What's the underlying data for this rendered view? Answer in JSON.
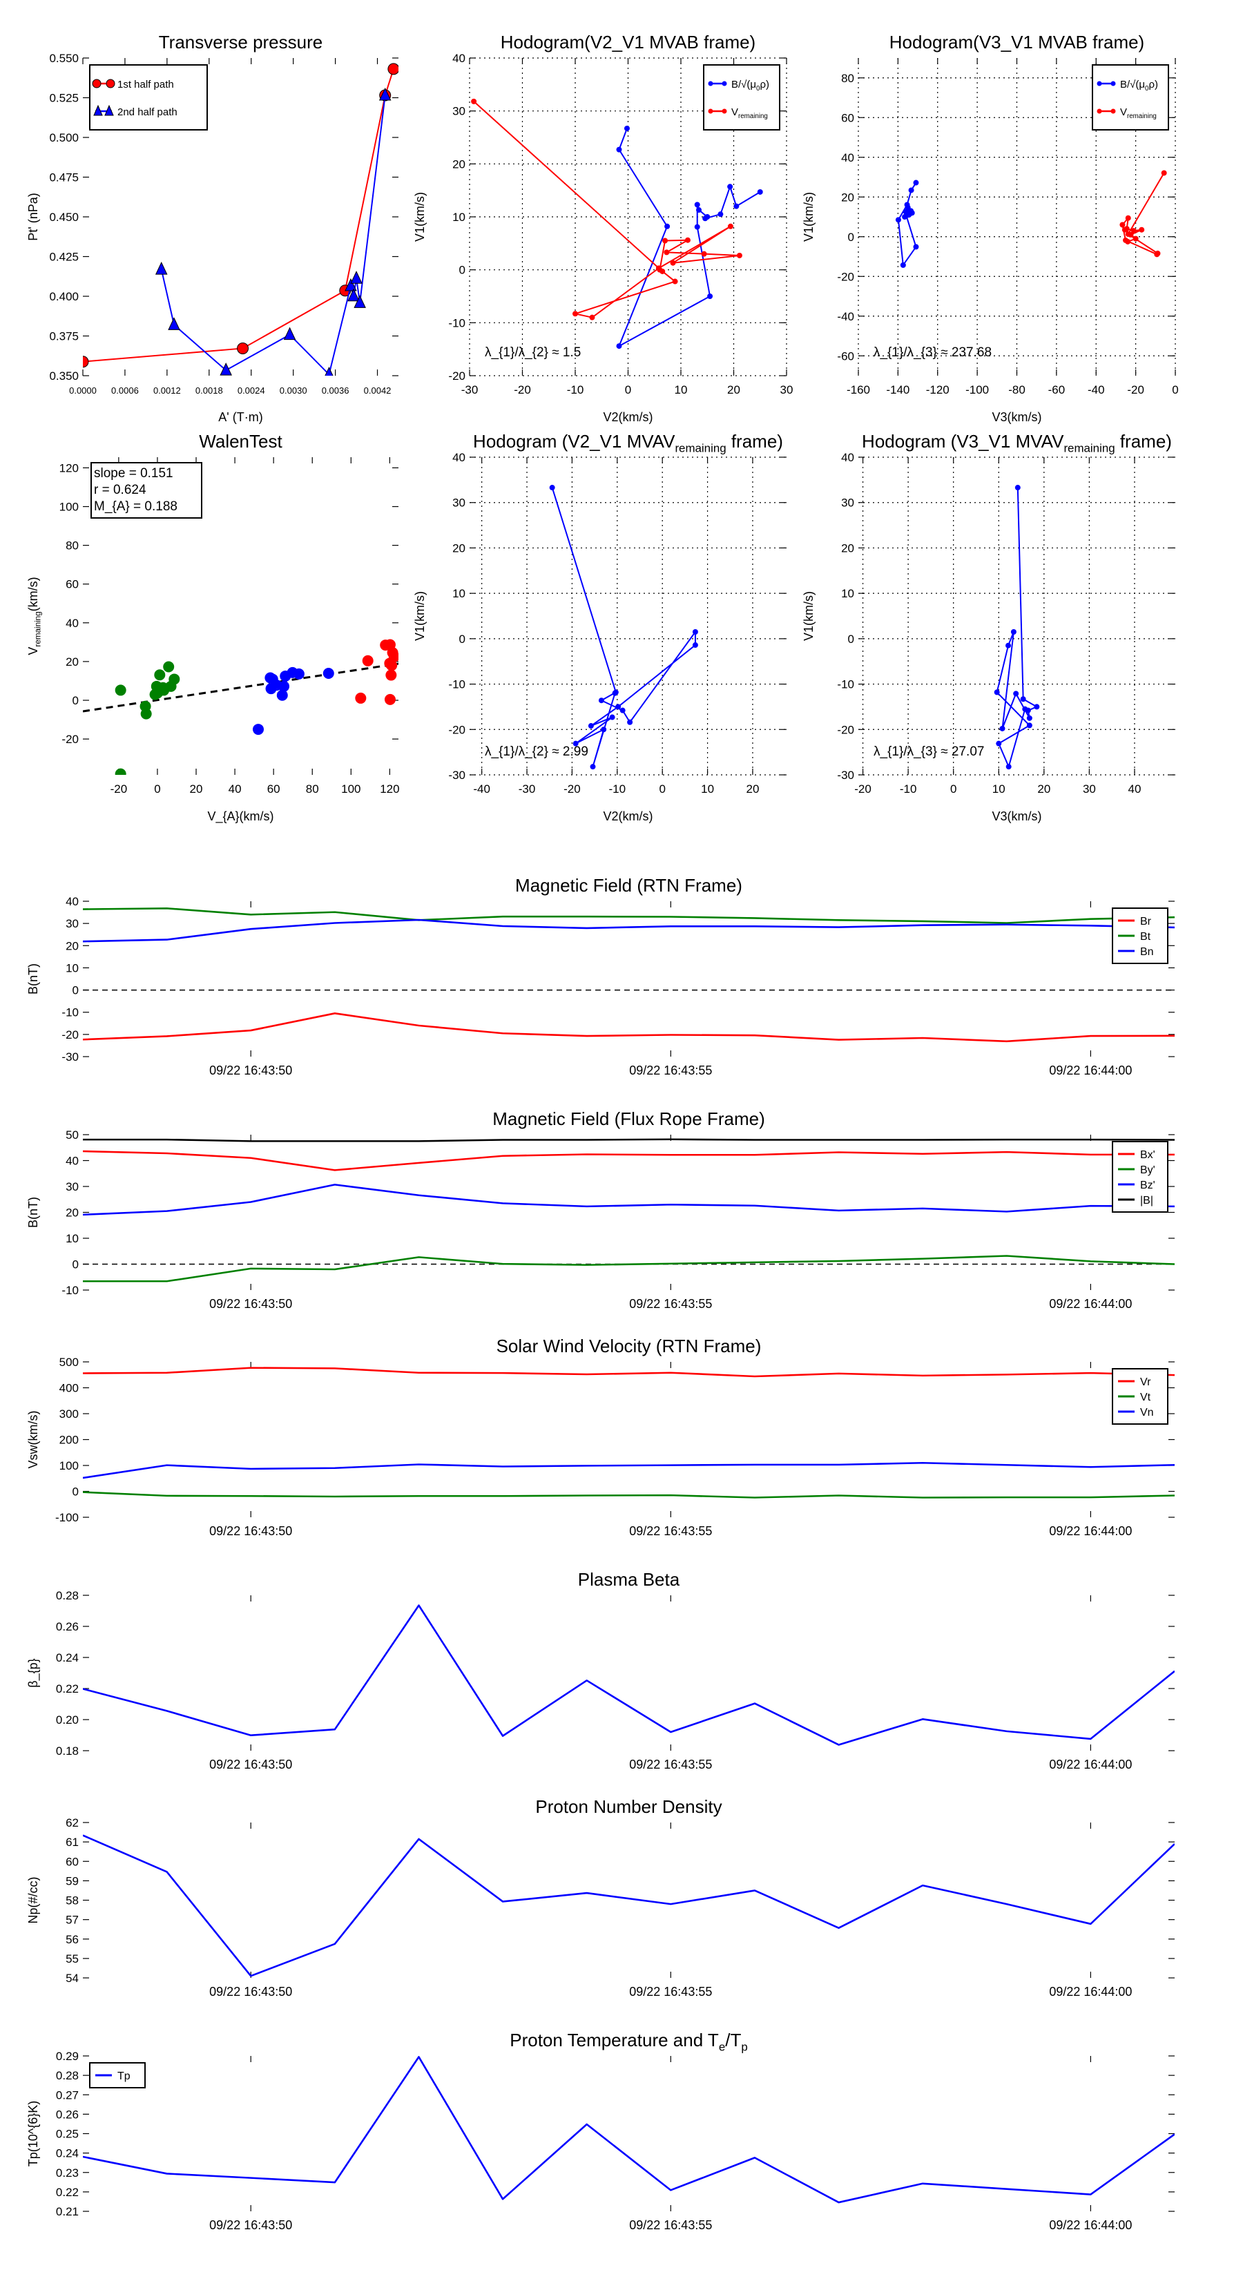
{
  "chart_data": [
    {
      "id": "transverse-pressure",
      "type": "line",
      "title": "Transverse pressure",
      "xlabel": "A' (T·m)",
      "ylabel": "Pt' (nPa)",
      "xlim": [
        0,
        0.0045
      ],
      "ylim": [
        0.35,
        0.55
      ],
      "xticks": [
        0,
        0.0006,
        0.0012,
        0.0018,
        0.0024,
        0.003,
        0.0036,
        0.0042
      ],
      "xticklabels": [
        "0.0000",
        "0.0006",
        "0.0012",
        "0.0018",
        "0.0024",
        "0.0030",
        "0.0036",
        "0.0042"
      ],
      "yticks": [
        0.35,
        0.375,
        0.4,
        0.425,
        0.45,
        0.475,
        0.5,
        0.525,
        0.55
      ],
      "yticklabels": [
        "0.350",
        "0.375",
        "0.400",
        "0.425",
        "0.450",
        "0.475",
        "0.500",
        "0.525",
        "0.550"
      ],
      "grid": false,
      "legend": "upper-left",
      "series": [
        {
          "name": "1st half path",
          "color": "#ff0000",
          "marker": "circle",
          "line": true,
          "x": [
            0,
            0.00228,
            0.00374,
            0.00431,
            0.00443
          ],
          "y": [
            0.3588,
            0.3672,
            0.4036,
            0.5265,
            0.5431
          ]
        },
        {
          "name": "2nd half path",
          "color": "#0000ff",
          "marker": "triangle",
          "line": true,
          "x": [
            0.00112,
            0.0013,
            0.00204,
            0.00295,
            0.00351,
            0.00382,
            0.00386,
            0.0039,
            0.00395,
            0.00431
          ],
          "y": [
            0.4169,
            0.382,
            0.3534,
            0.3758,
            0.3508,
            0.4065,
            0.4001,
            0.4112,
            0.3959,
            0.5265
          ]
        }
      ]
    },
    {
      "id": "hodogram-v2v1-mvab",
      "type": "line",
      "title": "Hodogram(V2_V1 MVAB frame)",
      "xlabel": "V2(km/s)",
      "ylabel": "V1(km/s)",
      "xlim": [
        -30,
        30
      ],
      "ylim": [
        -20,
        40
      ],
      "xticks": [
        -30,
        -20,
        -10,
        0,
        10,
        20,
        30
      ],
      "yticks": [
        -20,
        -10,
        0,
        10,
        20,
        30,
        40
      ],
      "grid": true,
      "legend": "upper-right",
      "annotation": "λ_{1}/λ_{2} ≈ 1.5",
      "series": [
        {
          "name": "B/√(μ_{0}ρ)",
          "color": "#0000ff",
          "marker": "dot",
          "line": true,
          "x": [
            -0.2,
            -1.7,
            7.4,
            -1.7,
            15.5,
            13.1,
            13.1,
            13.4,
            15.0,
            14.6,
            17.5,
            19.3,
            20.5,
            25.0
          ],
          "y": [
            26.7,
            22.7,
            8.2,
            -14.4,
            -5.0,
            8.1,
            12.3,
            11.3,
            10.0,
            9.7,
            10.5,
            15.7,
            12.0,
            14.7
          ]
        },
        {
          "name": "V_{remaining}",
          "color": "#ff0000",
          "marker": "dot",
          "line": true,
          "x": [
            -29.2,
            6.5,
            8.9,
            -10.0,
            -6.8,
            5.8,
            19.4,
            8.5,
            21.1,
            14.4,
            7.3,
            11.3,
            7.0,
            6.0
          ],
          "y": [
            31.8,
            -0.3,
            -2.2,
            -8.3,
            -9.0,
            0.3,
            8.2,
            1.3,
            2.7,
            3.0,
            3.3,
            5.6,
            5.5,
            0.0
          ]
        }
      ]
    },
    {
      "id": "hodogram-v3v1-mvab",
      "type": "line",
      "title": "Hodogram(V3_V1 MVAB frame)",
      "xlabel": "V3(km/s)",
      "ylabel": "V1(km/s)",
      "xlim": [
        -160,
        0
      ],
      "ylim": [
        -70,
        90
      ],
      "xticks": [
        -160,
        -140,
        -120,
        -100,
        -80,
        -60,
        -40,
        -20,
        0
      ],
      "yticks": [
        -60,
        -40,
        -20,
        0,
        20,
        40,
        60,
        80
      ],
      "grid": true,
      "legend": "upper-right",
      "annotation": "λ_{1}/λ_{3} ≈ 237.68",
      "series": [
        {
          "name": "B/√(μ_{0}ρ)",
          "color": "#0000ff",
          "marker": "dot",
          "line": true,
          "x": [
            -130.9,
            -133.3,
            -135.4,
            -139.8,
            -137.4,
            -130.9,
            -135.8,
            -132.9,
            -136.6,
            -135.0,
            -134.0,
            -133.5,
            -136.0,
            -134.5
          ],
          "y": [
            27.2,
            23.4,
            16.1,
            8.5,
            -14.3,
            -5.1,
            10.6,
            12.0,
            10.0,
            14.7,
            11.5,
            13.0,
            12.5,
            11.0
          ]
        },
        {
          "name": "V_{remaining}",
          "color": "#ff0000",
          "marker": "dot",
          "line": true,
          "x": [
            -5.7,
            -23.8,
            -8.9,
            -9.3,
            -25.1,
            -26.7,
            -23.8,
            -24.5,
            -21.0,
            -17.0,
            -22.5,
            -25.5,
            -20.0,
            -24.0
          ],
          "y": [
            32.1,
            1.3,
            -8.4,
            -8.9,
            -1.8,
            6.0,
            9.4,
            4.0,
            3.0,
            3.5,
            1.0,
            3.5,
            -1.0,
            -2.5
          ]
        }
      ]
    },
    {
      "id": "walen-test",
      "type": "scatter",
      "title": "WalenTest",
      "xlabel": "V_{A}(km/s)",
      "ylabel": "V_{remaining}(km/s)",
      "xlim": [
        -38.5,
        124.5
      ],
      "ylim": [
        -38.5,
        125.5
      ],
      "xticks": [
        -20,
        0,
        20,
        40,
        60,
        80,
        100,
        120
      ],
      "yticks": [
        -20,
        0,
        20,
        40,
        60,
        80,
        100,
        120
      ],
      "grid": false,
      "stats": [
        "slope = 0.151",
        "r = 0.624",
        "M_{A} = 0.188"
      ],
      "fit": {
        "slope": 0.151,
        "intercept": 0.1
      },
      "series": [
        {
          "name": "green",
          "color": "#008000",
          "marker": "big",
          "line": false,
          "x": [
            -19,
            -19,
            -6.2,
            -5.8,
            -0.4,
            -1.2,
            1.2,
            2.9,
            3.3,
            5.8,
            7.0,
            8.7,
            0.0
          ],
          "y": [
            5.2,
            -38,
            -3.1,
            -7.0,
            7.2,
            3.0,
            13.1,
            6.5,
            5.2,
            17.3,
            7.2,
            10.9,
            3.7
          ]
        },
        {
          "name": "blue",
          "color": "#0000ff",
          "marker": "big",
          "line": false,
          "x": [
            58.3,
            58.7,
            61.6,
            64.5,
            65.3,
            66.1,
            69.8,
            73.1,
            88.4,
            52.1,
            59.5
          ],
          "y": [
            11.6,
            6.0,
            7.8,
            2.6,
            7.2,
            12.5,
            14.3,
            13.6,
            13.9,
            -15.0,
            10.9
          ]
        },
        {
          "name": "red",
          "color": "#ff0000",
          "marker": "big",
          "line": false,
          "x": [
            105,
            108.7,
            117.8,
            120.2,
            120.2,
            120.7,
            121.0,
            121.5,
            122.3,
            120.0
          ],
          "y": [
            1.1,
            20.4,
            28.5,
            28.7,
            0.4,
            13.0,
            18.0,
            24.6,
            22.5,
            19.1
          ]
        }
      ]
    },
    {
      "id": "hodogram-v2v1-mvav",
      "type": "line",
      "title": "Hodogram (V2_V1 MVAV_{remaining} frame)",
      "xlabel": "V2(km/s)",
      "ylabel": "V1(km/s)",
      "xlim": [
        -42.7,
        27.5
      ],
      "ylim": [
        -30,
        40
      ],
      "xticks": [
        -40,
        -30,
        -20,
        -10,
        0,
        10,
        20
      ],
      "yticks": [
        -30,
        -20,
        -10,
        0,
        10,
        20,
        30,
        40
      ],
      "grid": true,
      "annotation": "λ_{1}/λ_{2} ≈ 2.99",
      "series": [
        {
          "name": "V",
          "color": "#0000ff",
          "marker": "dot",
          "line": true,
          "x": [
            -24.4,
            -10.3,
            -13.5,
            -8.8,
            -7.2,
            7.3,
            7.3,
            -9.8,
            -15.8,
            -11.1,
            -19.2,
            -13.0,
            -15.4,
            -10.5
          ],
          "y": [
            33.3,
            -11.8,
            -13.6,
            -15.8,
            -18.4,
            1.5,
            -1.4,
            -15.0,
            -19.2,
            -17.3,
            -23.1,
            -20.0,
            -28.2,
            -12.0
          ]
        }
      ]
    },
    {
      "id": "hodogram-v3v1-mvav",
      "type": "line",
      "title": "Hodogram (V3_V1 MVAV_{remaining} frame)",
      "xlabel": "V3(km/s)",
      "ylabel": "V1(km/s)",
      "xlim": [
        -21,
        49
      ],
      "ylim": [
        -30,
        40
      ],
      "xticks": [
        -20,
        -10,
        0,
        10,
        20,
        30,
        40
      ],
      "yticks": [
        -30,
        -20,
        -10,
        0,
        10,
        20,
        30,
        40
      ],
      "grid": true,
      "annotation": "λ_{1}/λ_{3} ≈ 27.07",
      "series": [
        {
          "name": "V",
          "color": "#0000ff",
          "marker": "dot",
          "line": true,
          "x": [
            14.2,
            15.4,
            18.4,
            16.5,
            16.8,
            13.8,
            10.8,
            13.3,
            12.1,
            9.6,
            16.8,
            10.0,
            12.2,
            15.8
          ],
          "y": [
            33.3,
            -13.3,
            -15.0,
            -15.8,
            -17.5,
            -12.1,
            -19.8,
            1.5,
            -1.5,
            -11.8,
            -19.1,
            -23.1,
            -28.2,
            -15.5
          ]
        }
      ]
    },
    {
      "id": "mag-rtn",
      "type": "line",
      "timeseries": true,
      "title": "Magnetic Field (RTN Frame)",
      "ylabel": "B(nT)",
      "ylim": [
        -30,
        40
      ],
      "yticks": [
        -30,
        -20,
        -10,
        0,
        10,
        20,
        30,
        40
      ],
      "hline": 0,
      "legend": "upper-right",
      "series": [
        {
          "name": "Br",
          "color": "#ff0000",
          "y": [
            -22.3,
            -20.8,
            -18.2,
            -10.5,
            -16.0,
            -19.5,
            -20.7,
            -20.2,
            -20.4,
            -22.4,
            -21.6,
            -23.1,
            -20.7,
            -20.6
          ]
        },
        {
          "name": "Bt",
          "color": "#008000",
          "y": [
            36.4,
            36.8,
            34.0,
            35.1,
            31.5,
            33.1,
            33.1,
            33.0,
            32.4,
            31.5,
            31.0,
            30.2,
            32.0,
            32.8
          ]
        },
        {
          "name": "Bn",
          "color": "#0000ff",
          "y": [
            21.9,
            22.7,
            27.5,
            30.2,
            31.6,
            28.8,
            27.9,
            28.7,
            28.7,
            28.3,
            29.2,
            29.5,
            29.0,
            28.2
          ]
        }
      ]
    },
    {
      "id": "mag-fluxrope",
      "type": "line",
      "timeseries": true,
      "title": "Magnetic Field (Flux Rope Frame)",
      "ylabel": "B(nT)",
      "ylim": [
        -10,
        50
      ],
      "yticks": [
        -10,
        0,
        10,
        20,
        30,
        40,
        50
      ],
      "hline": 0,
      "legend": "upper-right",
      "series": [
        {
          "name": "Bx'",
          "color": "#ff0000",
          "y": [
            43.6,
            42.8,
            41.0,
            36.3,
            39.1,
            41.8,
            42.4,
            42.2,
            42.2,
            43.2,
            42.6,
            43.3,
            42.3,
            42.3
          ]
        },
        {
          "name": "By'",
          "color": "#008000",
          "y": [
            -6.6,
            -6.6,
            -1.7,
            -2.0,
            2.7,
            0.1,
            -0.3,
            0.2,
            0.7,
            1.2,
            2.1,
            3.2,
            1.1,
            0.0
          ]
        },
        {
          "name": "Bz'",
          "color": "#0000ff",
          "y": [
            19.1,
            20.5,
            24.0,
            30.7,
            26.6,
            23.5,
            22.3,
            23.0,
            22.6,
            20.7,
            21.5,
            20.3,
            22.5,
            22.3
          ]
        },
        {
          "name": "|B|",
          "color": "#000000",
          "y": [
            48.1,
            48.1,
            47.5,
            47.5,
            47.5,
            48.0,
            48.0,
            48.2,
            48.0,
            48.0,
            48.0,
            48.1,
            48.1,
            48.0
          ]
        }
      ]
    },
    {
      "id": "velocity-rtn",
      "type": "line",
      "timeseries": true,
      "title": "Solar Wind Velocity (RTN Frame)",
      "ylabel": "Vsw(km/s)",
      "ylim": [
        -100,
        500
      ],
      "yticks": [
        -100,
        0,
        100,
        200,
        300,
        400,
        500
      ],
      "legend": "upper-right",
      "series": [
        {
          "name": "Vr",
          "color": "#ff0000",
          "y": [
            456,
            458,
            477,
            475,
            458,
            457,
            452,
            458,
            444,
            455,
            447,
            451,
            457,
            449
          ]
        },
        {
          "name": "Vt",
          "color": "#008000",
          "y": [
            -3,
            -17,
            -18,
            -20,
            -18,
            -18,
            -16,
            -15,
            -24,
            -16,
            -24,
            -23,
            -23,
            -16
          ]
        },
        {
          "name": "Vn",
          "color": "#0000ff",
          "y": [
            52,
            101,
            87,
            90,
            104,
            96,
            99,
            101,
            103,
            103,
            110,
            102,
            94,
            102
          ]
        }
      ]
    },
    {
      "id": "plasma-beta",
      "type": "line",
      "timeseries": true,
      "title": "Plasma Beta",
      "ylabel": "β_{p}",
      "ylim": [
        0.18,
        0.28
      ],
      "yticks": [
        0.18,
        0.2,
        0.22,
        0.24,
        0.26,
        0.28
      ],
      "yticklabels": [
        "0.18",
        "0.20",
        "0.22",
        "0.24",
        "0.26",
        "0.28"
      ],
      "series": [
        {
          "name": "beta",
          "color": "#0000ff",
          "y": [
            0.2198,
            0.2056,
            0.1899,
            0.1937,
            0.2735,
            0.1895,
            0.2252,
            0.192,
            0.2104,
            0.1838,
            0.2003,
            0.1925,
            0.1876,
            0.2312
          ]
        }
      ]
    },
    {
      "id": "proton-density",
      "type": "line",
      "timeseries": true,
      "title": "Proton Number Density",
      "ylabel": "Np(#/cc)",
      "ylim": [
        54,
        62
      ],
      "yticks": [
        54,
        55,
        56,
        57,
        58,
        59,
        60,
        61,
        62
      ],
      "series": [
        {
          "name": "Np",
          "color": "#0000ff",
          "y": [
            61.34,
            59.46,
            54.1,
            55.75,
            61.15,
            57.93,
            58.37,
            57.8,
            58.5,
            56.57,
            58.76,
            57.8,
            56.78,
            60.9
          ]
        }
      ]
    },
    {
      "id": "proton-temperature",
      "type": "line",
      "timeseries": true,
      "title": "Proton Temperature and T_{e}/T_{p}",
      "ylabel": "Tp(10^{6}K)",
      "ylim": [
        0.21,
        0.29
      ],
      "yticks": [
        0.21,
        0.22,
        0.23,
        0.24,
        0.25,
        0.26,
        0.27,
        0.28,
        0.29
      ],
      "yticklabels": [
        "0.21",
        "0.22",
        "0.23",
        "0.24",
        "0.25",
        "0.26",
        "0.27",
        "0.28",
        "0.29"
      ],
      "legend": "upper-left",
      "series": [
        {
          "name": "Tp",
          "color": "#0000ff",
          "y": [
            0.2381,
            0.2294,
            0.2272,
            0.2249,
            0.2895,
            0.2163,
            0.2548,
            0.2209,
            0.2376,
            0.2146,
            0.2243,
            0.2215,
            0.2187,
            0.2497
          ]
        }
      ]
    }
  ],
  "timeseries": {
    "times": [
      "16:43:48",
      "16:43:49",
      "16:43:50",
      "16:43:51",
      "16:43:52",
      "16:43:53",
      "16:43:54",
      "16:43:55",
      "16:43:56",
      "16:43:57",
      "16:43:58",
      "16:43:59",
      "16:44:00",
      "16:44:01"
    ],
    "xlim": [
      "16:43:48",
      "16:44:01"
    ],
    "xticks": [
      "16:43:50",
      "16:43:55",
      "16:44:00"
    ],
    "xticklabels": [
      "09/22 16:43:50",
      "09/22 16:43:55",
      "09/22 16:44:00"
    ]
  }
}
